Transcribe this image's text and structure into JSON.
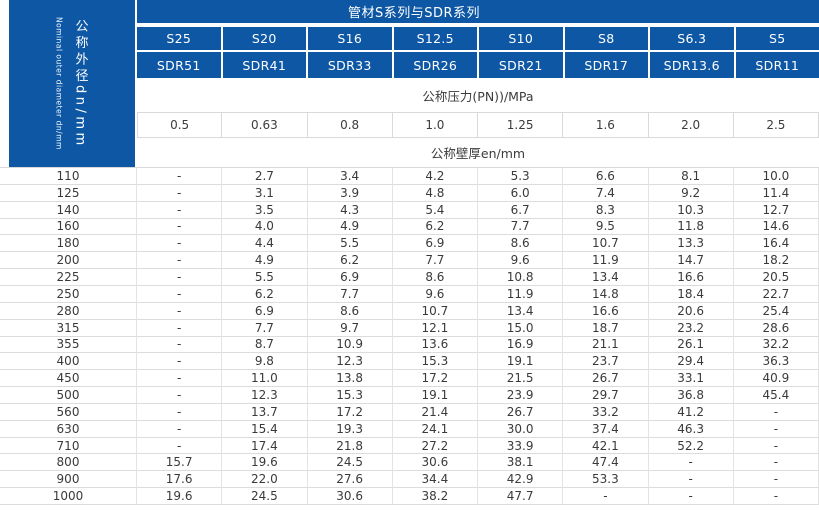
{
  "table": {
    "title": "管材S系列与SDR系列",
    "corner": {
      "title_zh": "公称外径dn/mm",
      "subtitle_en": "Nominal outer diameter dn/mm"
    },
    "pressure_label": "公称压力(PN))/MPa",
    "thickness_label": "公称壁厚en/mm",
    "s_series": [
      "S25",
      "S20",
      "S16",
      "S12.5",
      "S10",
      "S8",
      "S6.3",
      "S5"
    ],
    "sdr_series": [
      "SDR51",
      "SDR41",
      "SDR33",
      "SDR26",
      "SDR21",
      "SDR17",
      "SDR13.6",
      "SDR11"
    ],
    "pn_values": [
      "0.5",
      "0.63",
      "0.8",
      "1.0",
      "1.25",
      "1.6",
      "2.0",
      "2.5"
    ],
    "rows": [
      {
        "dn": "110",
        "values": [
          "-",
          "2.7",
          "3.4",
          "4.2",
          "5.3",
          "6.6",
          "8.1",
          "10.0"
        ]
      },
      {
        "dn": "125",
        "values": [
          "-",
          "3.1",
          "3.9",
          "4.8",
          "6.0",
          "7.4",
          "9.2",
          "11.4"
        ]
      },
      {
        "dn": "140",
        "values": [
          "-",
          "3.5",
          "4.3",
          "5.4",
          "6.7",
          "8.3",
          "10.3",
          "12.7"
        ]
      },
      {
        "dn": "160",
        "values": [
          "-",
          "4.0",
          "4.9",
          "6.2",
          "7.7",
          "9.5",
          "11.8",
          "14.6"
        ]
      },
      {
        "dn": "180",
        "values": [
          "-",
          "4.4",
          "5.5",
          "6.9",
          "8.6",
          "10.7",
          "13.3",
          "16.4"
        ]
      },
      {
        "dn": "200",
        "values": [
          "-",
          "4.9",
          "6.2",
          "7.7",
          "9.6",
          "11.9",
          "14.7",
          "18.2"
        ]
      },
      {
        "dn": "225",
        "values": [
          "-",
          "5.5",
          "6.9",
          "8.6",
          "10.8",
          "13.4",
          "16.6",
          "20.5"
        ]
      },
      {
        "dn": "250",
        "values": [
          "-",
          "6.2",
          "7.7",
          "9.6",
          "11.9",
          "14.8",
          "18.4",
          "22.7"
        ]
      },
      {
        "dn": "280",
        "values": [
          "-",
          "6.9",
          "8.6",
          "10.7",
          "13.4",
          "16.6",
          "20.6",
          "25.4"
        ]
      },
      {
        "dn": "315",
        "values": [
          "-",
          "7.7",
          "9.7",
          "12.1",
          "15.0",
          "18.7",
          "23.2",
          "28.6"
        ]
      },
      {
        "dn": "355",
        "values": [
          "-",
          "8.7",
          "10.9",
          "13.6",
          "16.9",
          "21.1",
          "26.1",
          "32.2"
        ]
      },
      {
        "dn": "400",
        "values": [
          "-",
          "9.8",
          "12.3",
          "15.3",
          "19.1",
          "23.7",
          "29.4",
          "36.3"
        ]
      },
      {
        "dn": "450",
        "values": [
          "-",
          "11.0",
          "13.8",
          "17.2",
          "21.5",
          "26.7",
          "33.1",
          "40.9"
        ]
      },
      {
        "dn": "500",
        "values": [
          "-",
          "12.3",
          "15.3",
          "19.1",
          "23.9",
          "29.7",
          "36.8",
          "45.4"
        ]
      },
      {
        "dn": "560",
        "values": [
          "-",
          "13.7",
          "17.2",
          "21.4",
          "26.7",
          "33.2",
          "41.2",
          "-"
        ]
      },
      {
        "dn": "630",
        "values": [
          "-",
          "15.4",
          "19.3",
          "24.1",
          "30.0",
          "37.4",
          "46.3",
          "-"
        ]
      },
      {
        "dn": "710",
        "values": [
          "-",
          "17.4",
          "21.8",
          "27.2",
          "33.9",
          "42.1",
          "52.2",
          "-"
        ]
      },
      {
        "dn": "800",
        "values": [
          "15.7",
          "19.6",
          "24.5",
          "30.6",
          "38.1",
          "47.4",
          "-",
          "-"
        ]
      },
      {
        "dn": "900",
        "values": [
          "17.6",
          "22.0",
          "27.6",
          "34.4",
          "42.9",
          "53.3",
          "-",
          "-"
        ]
      },
      {
        "dn": "1000",
        "values": [
          "19.6",
          "24.5",
          "30.6",
          "38.2",
          "47.7",
          "-",
          "-",
          "-"
        ]
      }
    ]
  },
  "colors": {
    "header_blue": "#0d57a5",
    "grid_border": "#dcdcdc",
    "body_text": "#3a3a3a",
    "header_text": "#ffffff"
  }
}
